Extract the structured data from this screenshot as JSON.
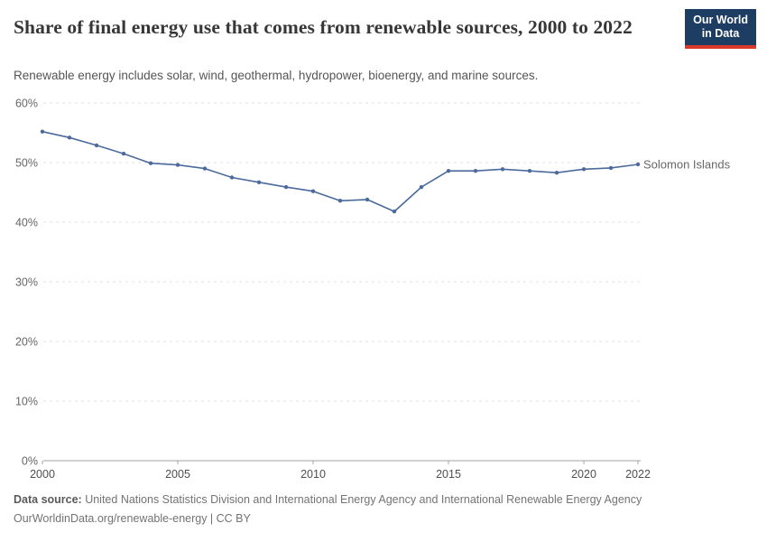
{
  "header": {
    "title": "Share of final energy use that comes from renewable sources, 2000 to 2022",
    "subtitle": "Renewable energy includes solar, wind, geothermal, hydropower, bioenergy, and marine sources.",
    "logo": {
      "line1": "Our World",
      "line2": "in Data"
    }
  },
  "chart_data": {
    "type": "line",
    "title": "Share of final energy use that comes from renewable sources, 2000 to 2022",
    "x": [
      2000,
      2001,
      2002,
      2003,
      2004,
      2005,
      2006,
      2007,
      2008,
      2009,
      2010,
      2011,
      2012,
      2013,
      2014,
      2015,
      2016,
      2017,
      2018,
      2019,
      2020,
      2021,
      2022
    ],
    "series": [
      {
        "name": "Solomon Islands",
        "color": "#4c6a9c",
        "values": [
          55.2,
          54.2,
          52.9,
          51.5,
          49.9,
          49.6,
          49.0,
          47.5,
          46.7,
          45.9,
          45.2,
          43.6,
          43.8,
          41.8,
          45.9,
          48.6,
          48.6,
          48.9,
          48.6,
          48.3,
          48.9,
          49.1,
          49.7
        ]
      }
    ],
    "xlabel": "",
    "ylabel": "",
    "ylim": [
      0,
      60
    ],
    "yticks": [
      0,
      10,
      20,
      30,
      40,
      50,
      60
    ],
    "ytick_suffix": "%",
    "xticks": [
      2000,
      2005,
      2010,
      2015,
      2020,
      2022
    ],
    "grid": "horizontal-dashed",
    "legend_position": "line-end-label"
  },
  "footer": {
    "source_label": "Data source:",
    "source_text": " United Nations Statistics Division and International Energy Agency and International Renewable Energy Agency",
    "link_line": "OurWorldinData.org/renewable-energy | CC BY"
  },
  "colors": {
    "line": "#4c6a9c",
    "logo_bg": "#1d3d63",
    "logo_accent": "#d93a2b",
    "gridline": "#e0e0e0",
    "axis": "#a3a3a3",
    "tick_text": "#666666",
    "title_text": "#373737"
  }
}
